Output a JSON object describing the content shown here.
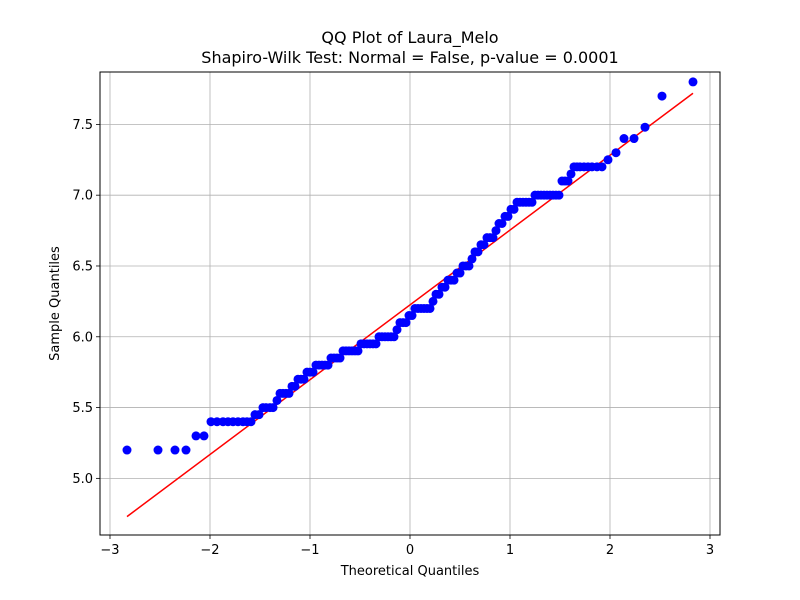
{
  "chart_data": {
    "type": "scatter",
    "title": "QQ Plot of Laura_Melo",
    "subtitle": "Shapiro-Wilk Test: Normal = False, p-value = 0.0001",
    "xlabel": "Theoretical Quantiles",
    "ylabel": "Sample Quantiles",
    "xlim": [
      -3.1,
      3.1
    ],
    "ylim": [
      4.6,
      7.87
    ],
    "xticks": [
      -3,
      -2,
      -1,
      0,
      1,
      2,
      3
    ],
    "xtick_labels": [
      "−3",
      "−2",
      "−1",
      "0",
      "1",
      "2",
      "3"
    ],
    "yticks": [
      5.0,
      5.5,
      6.0,
      6.5,
      7.0,
      7.5
    ],
    "ytick_labels": [
      "5.0",
      "5.5",
      "6.0",
      "6.5",
      "7.0",
      "7.5"
    ],
    "grid": true,
    "point_color": "#0000ff",
    "line_color": "#ff0000",
    "fit_line": {
      "x": [
        -2.83,
        2.83
      ],
      "y": [
        4.73,
        7.72
      ]
    },
    "points": {
      "x": [
        -2.83,
        -2.52,
        -2.35,
        -2.24,
        -2.14,
        -2.06,
        -1.99,
        -1.93,
        -1.87,
        -1.82,
        -1.77,
        -1.72,
        -1.67,
        -1.63,
        -1.59,
        -1.55,
        -1.51,
        -1.47,
        -1.44,
        -1.4,
        -1.37,
        -1.33,
        -1.3,
        -1.27,
        -1.24,
        -1.21,
        -1.18,
        -1.15,
        -1.12,
        -1.09,
        -1.06,
        -1.03,
        -1.0,
        -0.97,
        -0.94,
        -0.91,
        -0.88,
        -0.85,
        -0.82,
        -0.79,
        -0.76,
        -0.73,
        -0.7,
        -0.67,
        -0.64,
        -0.61,
        -0.58,
        -0.55,
        -0.52,
        -0.49,
        -0.46,
        -0.43,
        -0.4,
        -0.37,
        -0.34,
        -0.31,
        -0.28,
        -0.25,
        -0.22,
        -0.19,
        -0.16,
        -0.13,
        -0.1,
        -0.07,
        -0.04,
        -0.01,
        0.02,
        0.05,
        0.08,
        0.11,
        0.14,
        0.17,
        0.2,
        0.23,
        0.26,
        0.29,
        0.32,
        0.35,
        0.38,
        0.41,
        0.44,
        0.47,
        0.5,
        0.53,
        0.56,
        0.59,
        0.62,
        0.65,
        0.68,
        0.71,
        0.74,
        0.77,
        0.8,
        0.83,
        0.86,
        0.89,
        0.92,
        0.95,
        0.98,
        1.01,
        1.04,
        1.07,
        1.1,
        1.13,
        1.16,
        1.19,
        1.22,
        1.25,
        1.28,
        1.31,
        1.34,
        1.37,
        1.4,
        1.43,
        1.46,
        1.49,
        1.52,
        1.55,
        1.58,
        1.61,
        1.64,
        1.67,
        1.7,
        1.74,
        1.78,
        1.82,
        1.87,
        1.92,
        1.98,
        2.06,
        2.14,
        2.24,
        2.35,
        2.52,
        2.83
      ],
      "y": [
        5.2,
        5.2,
        5.2,
        5.2,
        5.3,
        5.3,
        5.4,
        5.4,
        5.4,
        5.4,
        5.4,
        5.4,
        5.4,
        5.4,
        5.4,
        5.45,
        5.45,
        5.5,
        5.5,
        5.5,
        5.5,
        5.55,
        5.6,
        5.6,
        5.6,
        5.6,
        5.65,
        5.65,
        5.7,
        5.7,
        5.7,
        5.75,
        5.75,
        5.75,
        5.8,
        5.8,
        5.8,
        5.8,
        5.8,
        5.85,
        5.85,
        5.85,
        5.85,
        5.9,
        5.9,
        5.9,
        5.9,
        5.9,
        5.9,
        5.95,
        5.95,
        5.95,
        5.95,
        5.95,
        5.95,
        6.0,
        6.0,
        6.0,
        6.0,
        6.0,
        6.0,
        6.05,
        6.1,
        6.1,
        6.1,
        6.15,
        6.15,
        6.2,
        6.2,
        6.2,
        6.2,
        6.2,
        6.2,
        6.25,
        6.3,
        6.3,
        6.35,
        6.35,
        6.4,
        6.4,
        6.4,
        6.45,
        6.45,
        6.5,
        6.5,
        6.5,
        6.55,
        6.6,
        6.6,
        6.65,
        6.65,
        6.7,
        6.7,
        6.7,
        6.75,
        6.8,
        6.8,
        6.85,
        6.85,
        6.9,
        6.9,
        6.95,
        6.95,
        6.95,
        6.95,
        6.95,
        6.95,
        7.0,
        7.0,
        7.0,
        7.0,
        7.0,
        7.0,
        7.0,
        7.0,
        7.0,
        7.1,
        7.1,
        7.1,
        7.15,
        7.2,
        7.2,
        7.2,
        7.2,
        7.2,
        7.2,
        7.2,
        7.2,
        7.25,
        7.3,
        7.4,
        7.4,
        7.48,
        7.7,
        7.8
      ]
    }
  }
}
